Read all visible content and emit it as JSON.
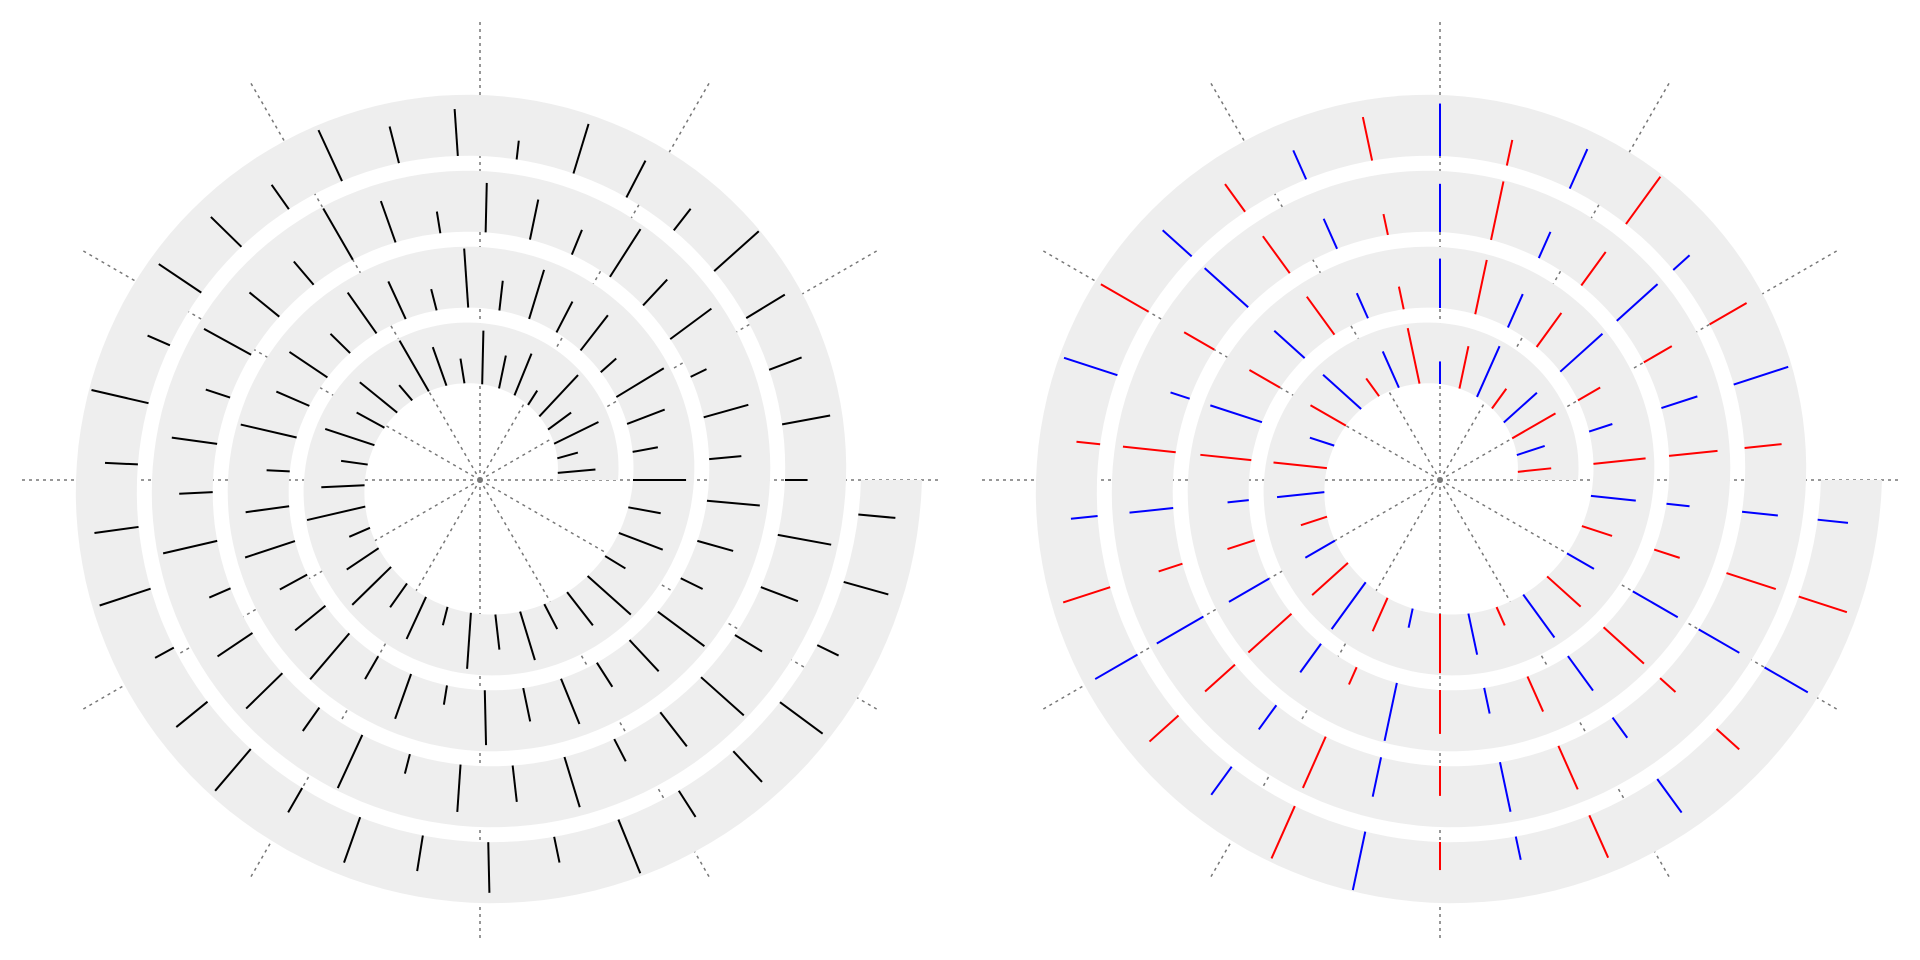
{
  "chart_data": [
    {
      "type": "spiral-bar",
      "color": "#000000",
      "band_color": "#eeeeee",
      "turns": 4,
      "vlim": [
        0,
        1
      ],
      "xticks": [
        0,
        30,
        60,
        90,
        120,
        150,
        180,
        210,
        240,
        270,
        300,
        330
      ],
      "grid": true,
      "values": [
        0.62,
        0.35,
        0.81,
        0.47,
        0.93,
        0.28,
        0.74,
        0.55,
        0.88,
        0.41,
        0.67,
        0.96,
        0.33,
        0.79,
        0.52,
        0.85,
        0.44,
        0.71,
        0.98,
        0.37,
        0.63,
        0.89,
        0.48,
        0.76,
        0.31,
        0.92,
        0.58,
        0.83,
        0.46,
        0.69,
        0.95,
        0.39,
        0.77,
        0.54,
        0.87,
        0.42,
        0.66,
        0.91,
        0.34,
        0.73,
        0.57,
        0.84,
        0.49,
        0.97,
        0.36,
        0.68,
        0.82,
        0.45,
        0.75,
        0.59,
        0.94,
        0.38,
        0.72,
        0.86,
        0.51,
        0.64,
        0.99,
        0.43,
        0.78,
        0.32,
        0.9,
        0.56,
        0.8,
        0.47,
        0.7,
        0.95,
        0.4,
        0.61,
        0.87,
        0.53,
        0.76,
        0.29,
        0.84,
        0.58,
        0.93,
        0.44,
        0.67,
        0.81,
        0.36,
        0.72,
        0.97,
        0.5,
        0.63,
        0.88,
        0.42,
        0.75,
        0.55,
        0.91,
        0.38,
        0.69,
        0.83,
        0.47,
        0.96,
        0.33,
        0.78,
        0.6,
        0.86,
        0.41,
        0.71,
        0.94,
        0.52,
        0.65,
        0.89,
        0.37,
        0.8,
        0.57,
        0.74,
        0.98,
        0.45,
        0.68,
        0.85,
        0.31,
        0.77,
        0.62,
        0.92,
        0.49,
        0.7,
        0.84,
        0.4,
        0.96,
        0.54,
        0.73,
        0.88,
        0.35,
        0.66,
        0.9,
        0.46,
        0.79,
        0.59,
        0.83,
        0.43,
        0.95,
        0.51,
        0.69,
        0.87,
        0.39,
        0.76,
        0.61
      ]
    },
    {
      "type": "spiral-bar",
      "band_color": "#eeeeee",
      "turns": 4,
      "vlim": [
        0,
        1
      ],
      "xticks": [
        0,
        30,
        60,
        90,
        120,
        150,
        180,
        210,
        240,
        270,
        300,
        330
      ],
      "grid": true,
      "series": [
        {
          "color": "#ff0000",
          "values": [
            0.55,
            null,
            0.82,
            null,
            0.4,
            null,
            0.71,
            null,
            0.93,
            null,
            0.36,
            null,
            0.67,
            null,
            0.88,
            null,
            0.45,
            null,
            0.79,
            null,
            0.6,
            null,
            0.97,
            null,
            0.33,
            null,
            0.74,
            null,
            0.52,
            null,
            0.86,
            null,
            0.42,
            null,
            0.69,
            null,
            0.91,
            null,
            0.38,
            null,
            0.77,
            null,
            0.58,
            null,
            0.84,
            null,
            0.47,
            null,
            0.95,
            null,
            0.31,
            null,
            0.72,
            null,
            0.63,
            null,
            0.89,
            null,
            0.44,
            null,
            0.8,
            null,
            0.53,
            null,
            0.68,
            null,
            0.98,
            null,
            0.35,
            null,
            0.75,
            null,
            0.57,
            null,
            0.87,
            null,
            0.41,
            null,
            0.66,
            null,
            0.92,
            null,
            0.49,
            null,
            0.78,
            null,
            0.34,
            null,
            0.85,
            null,
            0.61,
            null,
            0.7,
            null,
            0.96,
            null,
            0.43,
            null,
            0.73,
            null,
            0.56,
            null,
            0.9,
            null,
            0.39,
            null,
            0.81,
            null,
            0.64,
            null,
            0.94,
            null,
            0.46,
            null,
            0.76,
            null,
            0.5,
            null,
            0.83,
            null
          ]
        },
        {
          "color": "#0000ff",
          "values": [
            null,
            0.48,
            null,
            0.73,
            null,
            0.91,
            null,
            0.37,
            null,
            0.65,
            null,
            0.84,
            null,
            0.42,
            null,
            0.78,
            null,
            0.56,
            null,
            0.95,
            null,
            0.32,
            null,
            0.69,
            null,
            0.87,
            null,
            0.51,
            null,
            0.74,
            null,
            0.4,
            null,
            0.93,
            null,
            0.6,
            null,
            0.81,
            null,
            0.45,
            null,
            0.67,
            null,
            0.89,
            null,
            0.35,
            null,
            0.76,
            null,
            0.58,
            null,
            0.97,
            null,
            0.43,
            null,
            0.7,
            null,
            0.85,
            null,
            0.38,
            null,
            0.62,
            null,
            0.9,
            null,
            0.47,
            null,
            0.79,
            null,
            0.54,
            null,
            0.96,
            null,
            0.33,
            null,
            0.72,
            null,
            0.88,
            null,
            0.49,
            null,
            0.66,
            null,
            0.83,
            null,
            0.41,
            null,
            0.77,
            null,
            0.59,
            null,
            0.94,
            null,
            0.36,
            null,
            0.71,
            null,
            0.86,
            null,
            0.52,
            null,
            0.64,
            null,
            0.92,
            null,
            0.44,
            null,
            0.8,
            null,
            0.57,
            null,
            0.98,
            null,
            0.39,
            null,
            0.68,
            null,
            0.82,
            null,
            0.5
          ]
        }
      ]
    }
  ]
}
